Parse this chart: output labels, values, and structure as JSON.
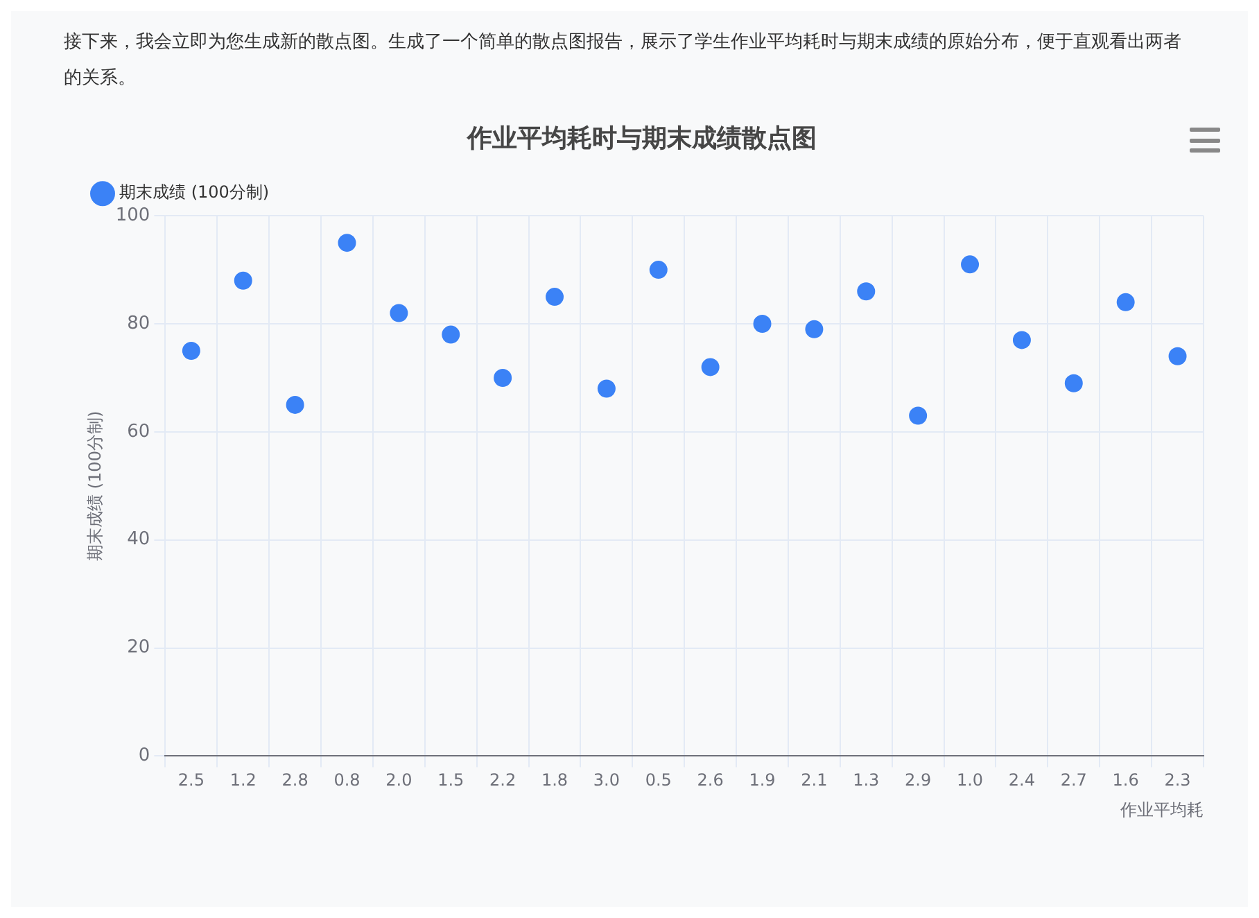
{
  "chart_data": {
    "type": "scatter",
    "title": "作业平均耗时与期末成绩散点图",
    "annotations": [
      "接下来，我会立即为您生成新的散点图。生成了一个简单的散点图报告，展示了学生作业平均耗时与期末成绩的原始分布，便于直观看出两者的关系。"
    ],
    "xlabel": "作业平均耗",
    "ylabel": "期末成绩 (100分制)",
    "categories": [
      "2.5",
      "1.2",
      "2.8",
      "0.8",
      "2.0",
      "1.5",
      "2.2",
      "1.8",
      "3.0",
      "0.5",
      "2.6",
      "1.9",
      "2.1",
      "1.3",
      "2.9",
      "1.0",
      "2.4",
      "2.7",
      "1.6",
      "2.3"
    ],
    "series": [
      {
        "name": "期末成绩 (100分制)",
        "color": "#3b82f6",
        "values": [
          75,
          88,
          65,
          95,
          82,
          78,
          70,
          85,
          68,
          90,
          72,
          80,
          79,
          86,
          63,
          91,
          77,
          69,
          84,
          74
        ]
      }
    ],
    "ylim": [
      0,
      100
    ],
    "yticks": [
      0,
      20,
      40,
      60,
      80,
      100
    ],
    "grid": true,
    "legend": "top left",
    "marker": "circle"
  }
}
